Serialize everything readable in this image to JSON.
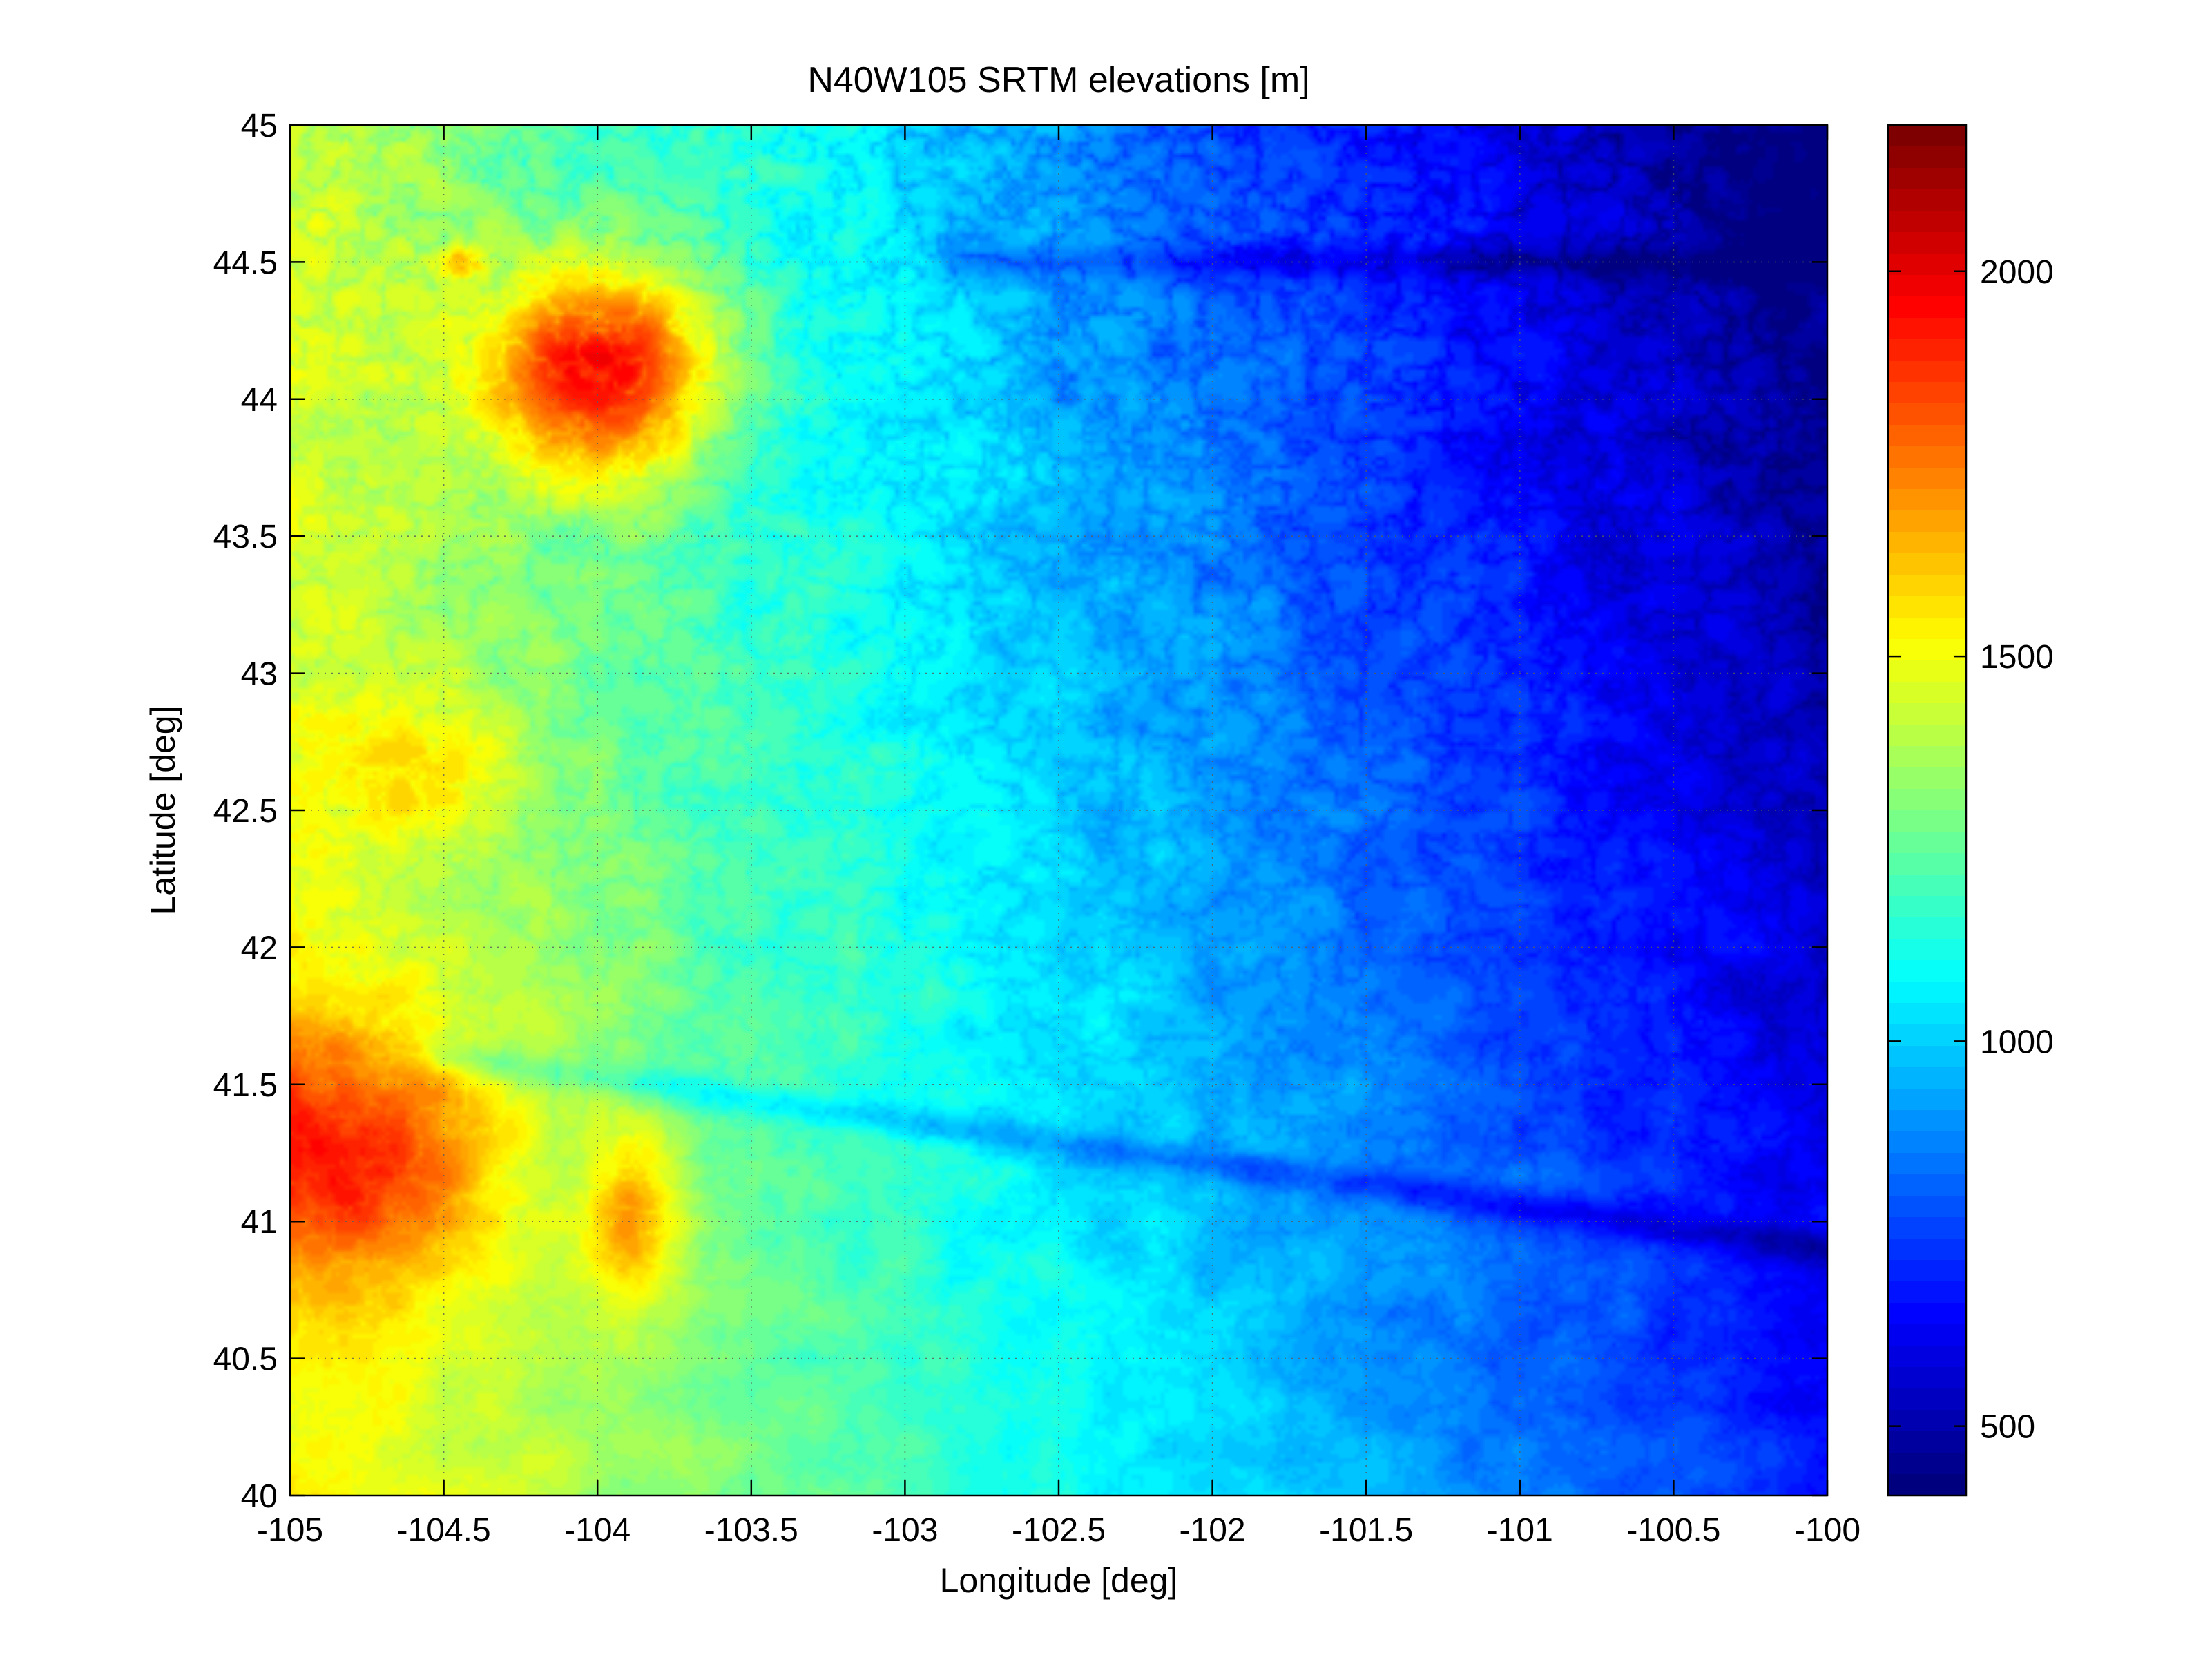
{
  "chart_data": {
    "type": "heatmap",
    "title": "N40W105 SRTM elevations [m]",
    "xlabel": "Longitude [deg]",
    "ylabel": "Latitude [deg]",
    "xlim": [
      -105,
      -100
    ],
    "ylim": [
      40,
      45
    ],
    "x_ticks": [
      -105,
      -104.5,
      -104,
      -103.5,
      -103,
      -102.5,
      -102,
      -101.5,
      -101,
      -100.5,
      -100
    ],
    "x_tick_labels": [
      "-105",
      "-104.5",
      "-104",
      "-103.5",
      "-103",
      "-102.5",
      "-102",
      "-101.5",
      "-101",
      "-100.5",
      "-100"
    ],
    "y_ticks": [
      40,
      40.5,
      41,
      41.5,
      42,
      42.5,
      43,
      43.5,
      44,
      44.5,
      45
    ],
    "y_tick_labels": [
      "40",
      "40.5",
      "41",
      "41.5",
      "42",
      "42.5",
      "43",
      "43.5",
      "44",
      "44.5",
      "45"
    ],
    "grid": true,
    "colormap": "jet",
    "colorbar": {
      "position": "right",
      "range": [
        410,
        2190
      ],
      "ticks": [
        500,
        1000,
        1500,
        2000
      ],
      "tick_labels": [
        "500",
        "1000",
        "1500",
        "2000"
      ]
    },
    "features": [
      {
        "lon": -104.0,
        "lat": 44.1,
        "elevation": 2150,
        "spread_lon": 0.35,
        "spread_lat": 0.35
      },
      {
        "lon": -104.45,
        "lat": 44.5,
        "elevation": 1750,
        "spread_lon": 0.08,
        "spread_lat": 0.06
      },
      {
        "lon": -104.9,
        "lat": 41.25,
        "elevation": 2050,
        "spread_lon": 0.5,
        "spread_lat": 0.45
      },
      {
        "lon": -104.6,
        "lat": 42.65,
        "elevation": 1650,
        "spread_lon": 0.3,
        "spread_lat": 0.25
      },
      {
        "lon": -103.9,
        "lat": 41.0,
        "elevation": 1650,
        "spread_lon": 0.15,
        "spread_lat": 0.3
      }
    ],
    "regional_trend": {
      "west_elevation": 1550,
      "east_elevation": 700,
      "northeast_elevation": 450,
      "valleys": [
        {
          "name": "",
          "from": [
            -104.5,
            41.6
          ],
          "to": [
            -100,
            40.9
          ],
          "depth": 150
        },
        {
          "name": "",
          "from": [
            -102.8,
            44.5
          ],
          "to": [
            -100,
            44.5
          ],
          "depth": 120
        }
      ]
    }
  }
}
